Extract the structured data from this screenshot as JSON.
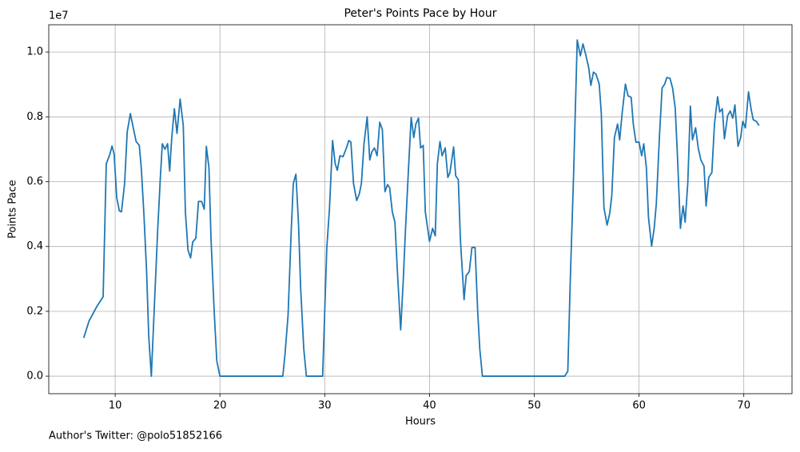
{
  "chart_data": {
    "type": "line",
    "title": "Peter's Points Pace by Hour",
    "xlabel": "Hours",
    "ylabel": "Points Pace",
    "y_offset_label": "1e7",
    "annotation": "Author's Twitter: @polo51852166",
    "grid": true,
    "xlim": [
      3.66,
      74.6
    ],
    "ylim": [
      -0.054,
      1.084
    ],
    "xticks": [
      10,
      20,
      30,
      40,
      50,
      60,
      70
    ],
    "yticks": [
      {
        "value": 0,
        "label": "0.0"
      },
      0.2,
      0.4,
      0.6,
      0.8,
      {
        "value": 1,
        "label": "1.0"
      }
    ],
    "x": [
      7.0,
      7.5,
      8.25,
      8.85,
      9.15,
      9.5,
      9.7,
      9.9,
      10.15,
      10.4,
      10.6,
      10.9,
      11.15,
      11.45,
      11.7,
      12.0,
      12.3,
      12.5,
      12.75,
      13.0,
      13.2,
      13.45,
      13.75,
      14.05,
      14.3,
      14.5,
      14.75,
      15.0,
      15.2,
      15.4,
      15.65,
      15.9,
      16.2,
      16.5,
      16.7,
      16.95,
      17.2,
      17.4,
      17.7,
      17.95,
      18.25,
      18.5,
      18.7,
      18.95,
      19.15,
      19.45,
      19.7,
      20.0,
      26.0,
      26.2,
      26.5,
      26.8,
      27.0,
      27.25,
      27.5,
      27.7,
      28.0,
      28.25,
      29.8,
      30.0,
      30.2,
      30.45,
      30.75,
      31.0,
      31.2,
      31.45,
      31.75,
      32.05,
      32.3,
      32.5,
      32.75,
      33.05,
      33.3,
      33.5,
      33.75,
      34.05,
      34.3,
      34.5,
      34.75,
      35.0,
      35.25,
      35.5,
      35.75,
      36.0,
      36.2,
      36.45,
      36.7,
      36.95,
      37.25,
      37.5,
      37.7,
      38.0,
      38.25,
      38.5,
      38.7,
      38.95,
      39.15,
      39.4,
      39.6,
      40.0,
      40.3,
      40.55,
      40.75,
      41.0,
      41.2,
      41.5,
      41.75,
      41.95,
      42.3,
      42.5,
      42.75,
      42.95,
      43.3,
      43.5,
      43.8,
      44.05,
      44.35,
      44.6,
      44.8,
      45.05,
      52.9,
      53.2,
      53.45,
      53.75,
      54.1,
      54.4,
      54.65,
      54.9,
      55.2,
      55.4,
      55.65,
      55.9,
      56.2,
      56.4,
      56.65,
      56.95,
      57.2,
      57.4,
      57.65,
      57.95,
      58.15,
      58.4,
      58.7,
      58.95,
      59.25,
      59.45,
      59.7,
      60.0,
      60.25,
      60.45,
      60.7,
      60.9,
      61.2,
      61.45,
      61.65,
      61.95,
      62.2,
      62.45,
      62.65,
      62.95,
      63.2,
      63.45,
      63.65,
      63.95,
      64.2,
      64.4,
      64.65,
      64.9,
      65.1,
      65.4,
      65.65,
      65.9,
      66.2,
      66.4,
      66.65,
      66.95,
      67.2,
      67.5,
      67.7,
      67.95,
      68.15,
      68.45,
      68.7,
      68.95,
      69.15,
      69.45,
      69.7,
      69.9,
      70.15,
      70.45,
      70.7,
      70.9,
      71.2,
      71.45
    ],
    "series": [
      {
        "name": "Points Pace",
        "color": "#1f77b4",
        "values": [
          0.118,
          0.17,
          0.215,
          0.245,
          0.655,
          0.685,
          0.71,
          0.685,
          0.55,
          0.51,
          0.507,
          0.594,
          0.754,
          0.81,
          0.77,
          0.724,
          0.712,
          0.638,
          0.495,
          0.323,
          0.126,
          0,
          0.224,
          0.446,
          0.606,
          0.717,
          0.7,
          0.717,
          0.633,
          0.736,
          0.825,
          0.749,
          0.855,
          0.773,
          0.507,
          0.389,
          0.365,
          0.414,
          0.426,
          0.539,
          0.539,
          0.515,
          0.709,
          0.643,
          0.421,
          0.2,
          0.047,
          0,
          0,
          0.064,
          0.187,
          0.446,
          0.594,
          0.623,
          0.47,
          0.273,
          0.084,
          0,
          0,
          0.2,
          0.397,
          0.515,
          0.727,
          0.655,
          0.635,
          0.68,
          0.677,
          0.702,
          0.727,
          0.722,
          0.594,
          0.542,
          0.562,
          0.594,
          0.717,
          0.8,
          0.667,
          0.692,
          0.704,
          0.68,
          0.783,
          0.761,
          0.569,
          0.591,
          0.581,
          0.507,
          0.475,
          0.315,
          0.143,
          0.298,
          0.446,
          0.643,
          0.798,
          0.736,
          0.778,
          0.796,
          0.704,
          0.712,
          0.507,
          0.416,
          0.456,
          0.433,
          0.655,
          0.724,
          0.68,
          0.704,
          0.613,
          0.628,
          0.707,
          0.618,
          0.606,
          0.421,
          0.236,
          0.31,
          0.323,
          0.397,
          0.397,
          0.2,
          0.084,
          0,
          0,
          0.015,
          0.31,
          0.618,
          1.037,
          0.988,
          1.025,
          0.993,
          0.951,
          0.897,
          0.938,
          0.931,
          0.901,
          0.81,
          0.52,
          0.466,
          0.502,
          0.557,
          0.736,
          0.778,
          0.729,
          0.815,
          0.901,
          0.865,
          0.86,
          0.778,
          0.722,
          0.722,
          0.68,
          0.717,
          0.643,
          0.49,
          0.401,
          0.458,
          0.532,
          0.741,
          0.889,
          0.901,
          0.921,
          0.919,
          0.889,
          0.828,
          0.692,
          0.456,
          0.525,
          0.475,
          0.594,
          0.833,
          0.729,
          0.766,
          0.704,
          0.667,
          0.648,
          0.525,
          0.613,
          0.628,
          0.778,
          0.862,
          0.815,
          0.825,
          0.732,
          0.803,
          0.818,
          0.796,
          0.837,
          0.709,
          0.736,
          0.786,
          0.766,
          0.877,
          0.823,
          0.791,
          0.786,
          0.773
        ]
      }
    ]
  }
}
